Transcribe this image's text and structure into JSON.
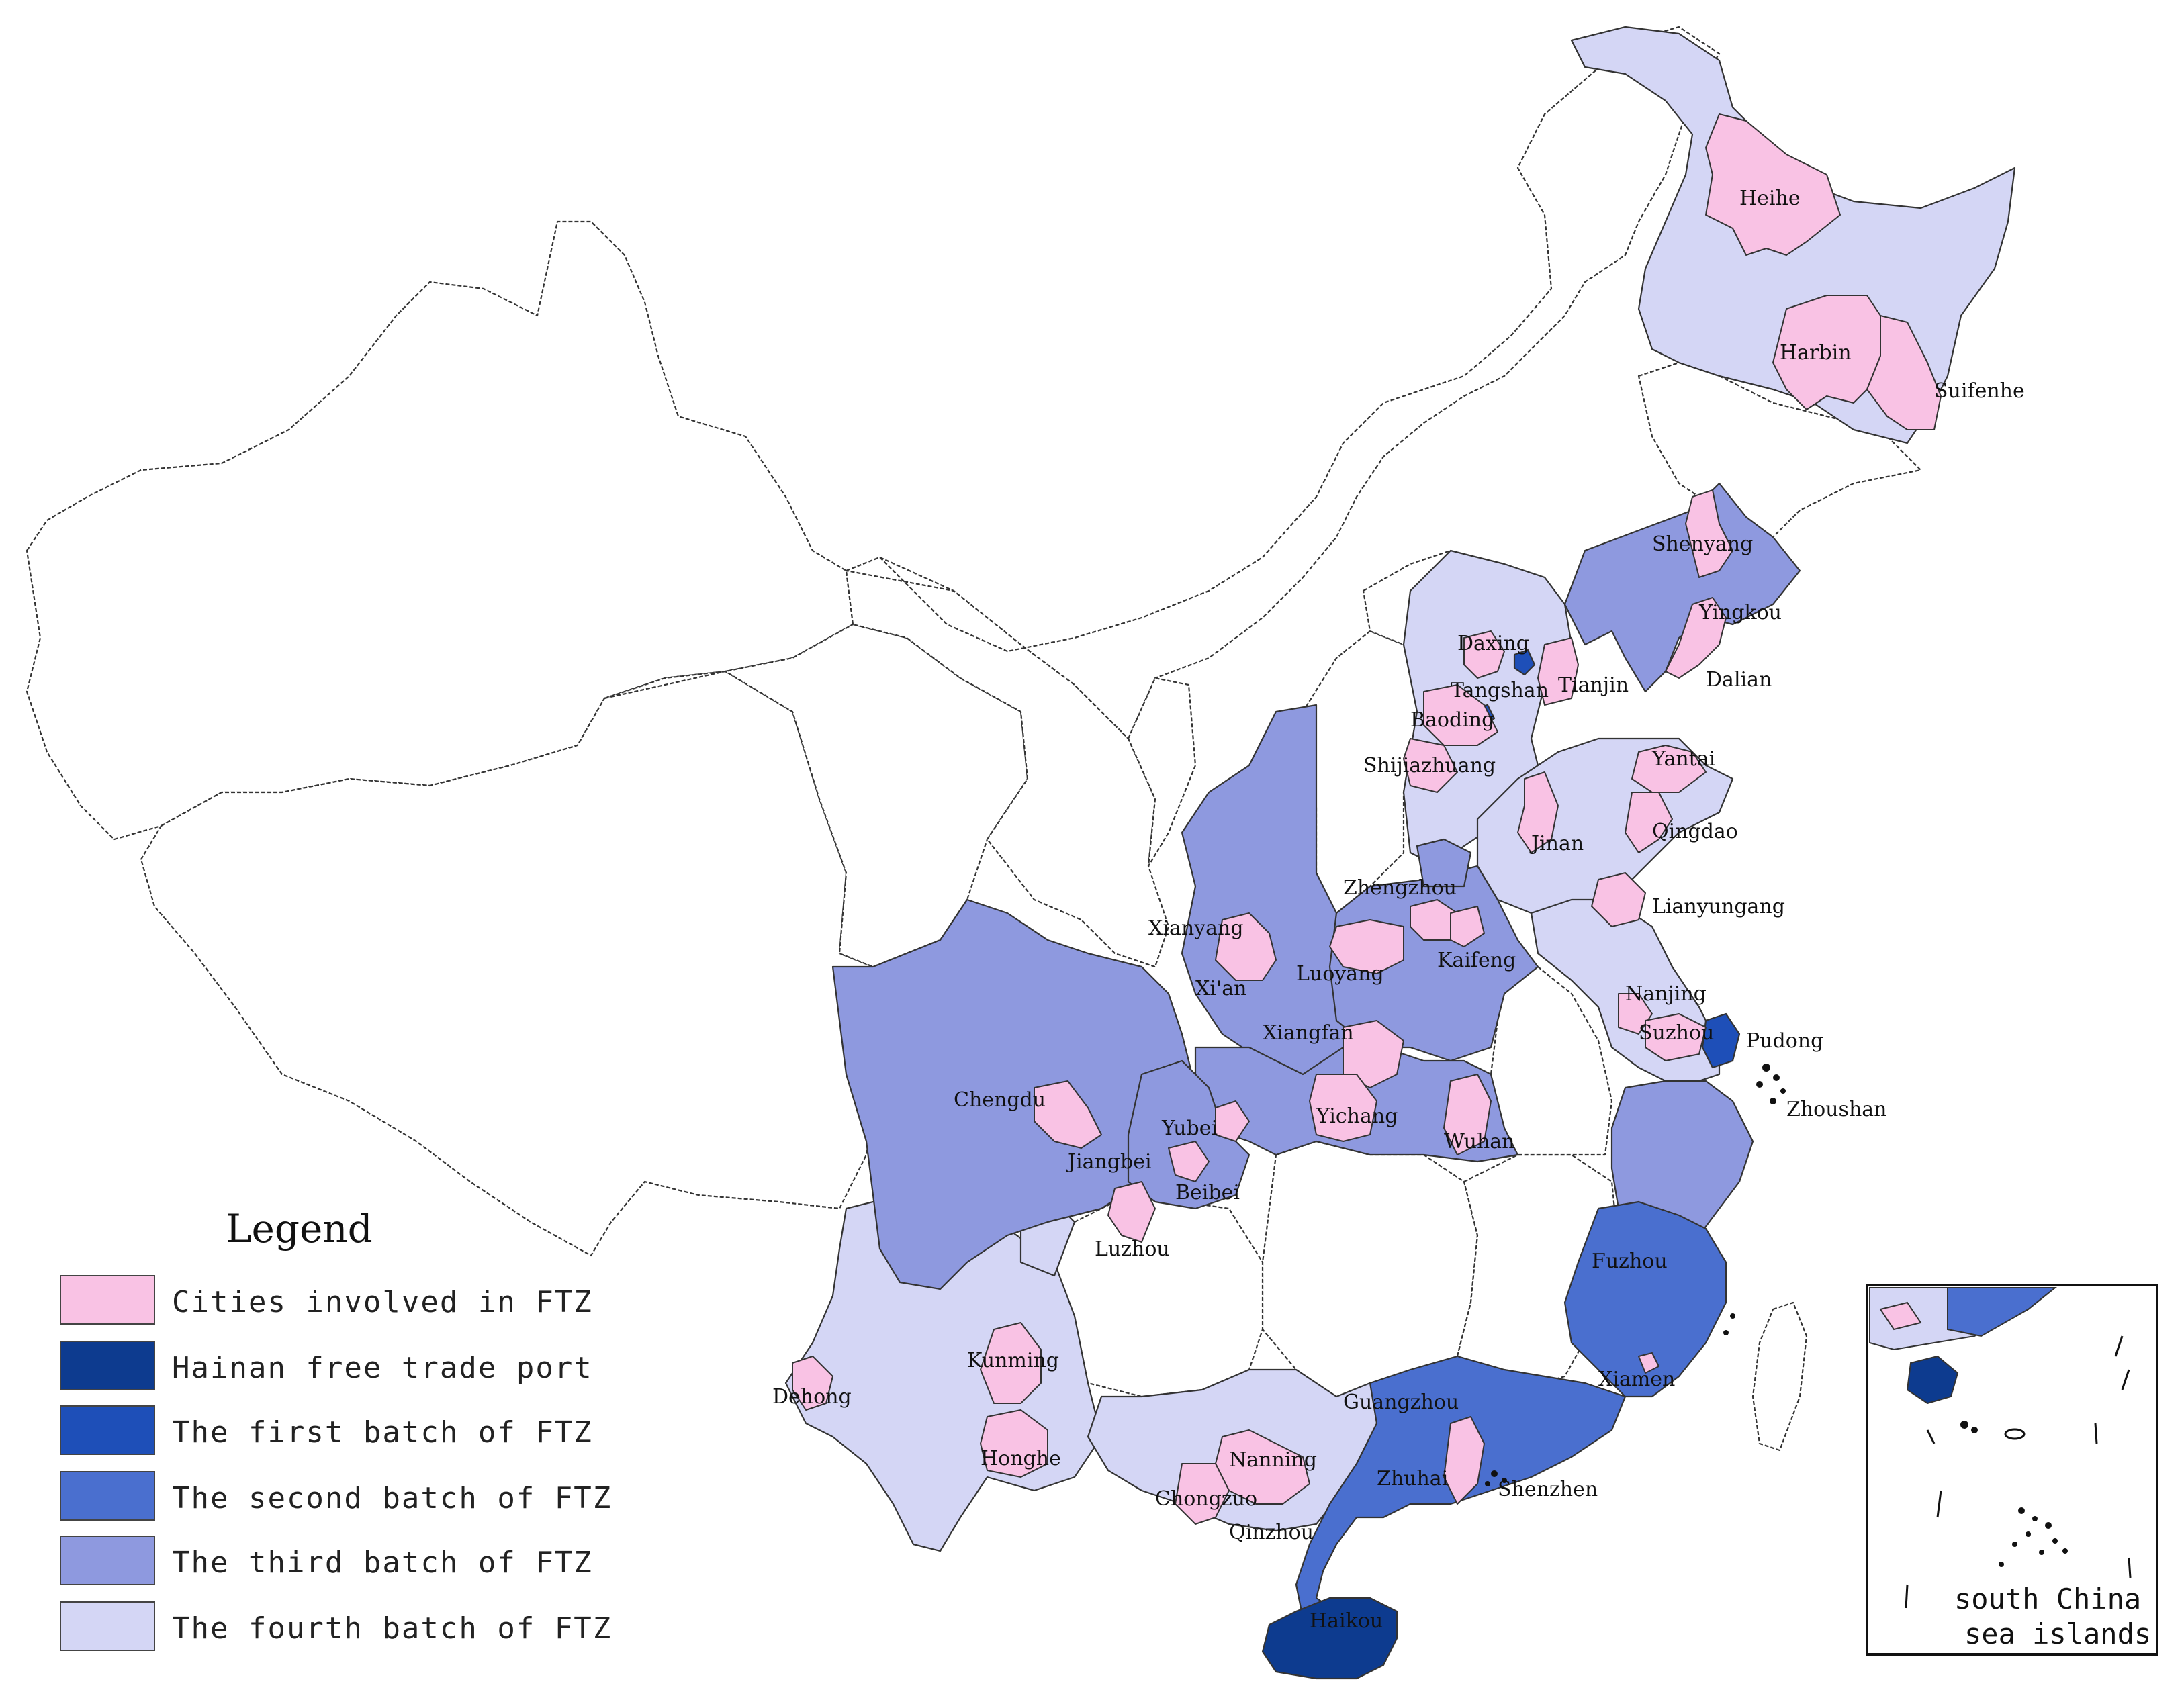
{
  "colors": {
    "cities_involved_in_ftz": "#f9c2e4",
    "hainan_free_trade_port": "#0d3b8f",
    "first_batch": "#1e4fb8",
    "second_batch": "#4a6fcf",
    "third_batch": "#8e99df",
    "fourth_batch": "#d4d6f5",
    "not_ftz": "#ffffff"
  },
  "legend": {
    "title": "Legend",
    "items": [
      {
        "label": "Cities involved in FTZ",
        "color_key": "cities_involved_in_ftz"
      },
      {
        "label": "Hainan free trade port",
        "color_key": "hainan_free_trade_port"
      },
      {
        "label": "The first batch of FTZ",
        "color_key": "first_batch"
      },
      {
        "label": "The second batch of FTZ",
        "color_key": "second_batch"
      },
      {
        "label": "The third batch of FTZ",
        "color_key": "third_batch"
      },
      {
        "label": "The fourth batch of FTZ",
        "color_key": "fourth_batch"
      }
    ]
  },
  "inset": {
    "label_line1": "south China",
    "label_line2": "sea islands"
  },
  "cities": {
    "heihe": "Heihe",
    "harbin": "Harbin",
    "suifenhe": "Suifenhe",
    "shenyang": "Shenyang",
    "yingkou": "Yingkou",
    "dalian": "Dalian",
    "daxing": "Daxing",
    "tangshan": "Tangshan",
    "tianjin": "Tianjin",
    "baoding": "Baoding",
    "shijiazhuang": "Shijiazhuang",
    "yantai": "Yantai",
    "qingdao": "Qingdao",
    "jinan": "Jinan",
    "zhengzhou": "Zhengzhou",
    "lianyungang": "Lianyungang",
    "xianyang": "Xianyang",
    "xian": "Xi'an",
    "luoyang": "Luoyang",
    "kaifeng": "Kaifeng",
    "nanjing": "Nanjing",
    "suzhou": "Suzhou",
    "pudong": "Pudong",
    "zhoushan": "Zhoushan",
    "xiangfan": "Xiangfan",
    "chengdu": "Chengdu",
    "yichang": "Yichang",
    "wuhan": "Wuhan",
    "yubei": "Yubei",
    "jiangbei": "Jiangbei",
    "beibei": "Beibei",
    "luzhou": "Luzhou",
    "fuzhou": "Fuzhou",
    "xiamen": "Xiamen",
    "kunming": "Kunming",
    "dehong": "Dehong",
    "honghe": "Honghe",
    "guangzhou": "Guangzhou",
    "zhuhai": "Zhuhai",
    "shenzhen": "Shenzhen",
    "nanning": "Nanning",
    "chongzuo": "Chongzuo",
    "qinzhou": "Qinzhou",
    "haikou": "Haikou"
  }
}
